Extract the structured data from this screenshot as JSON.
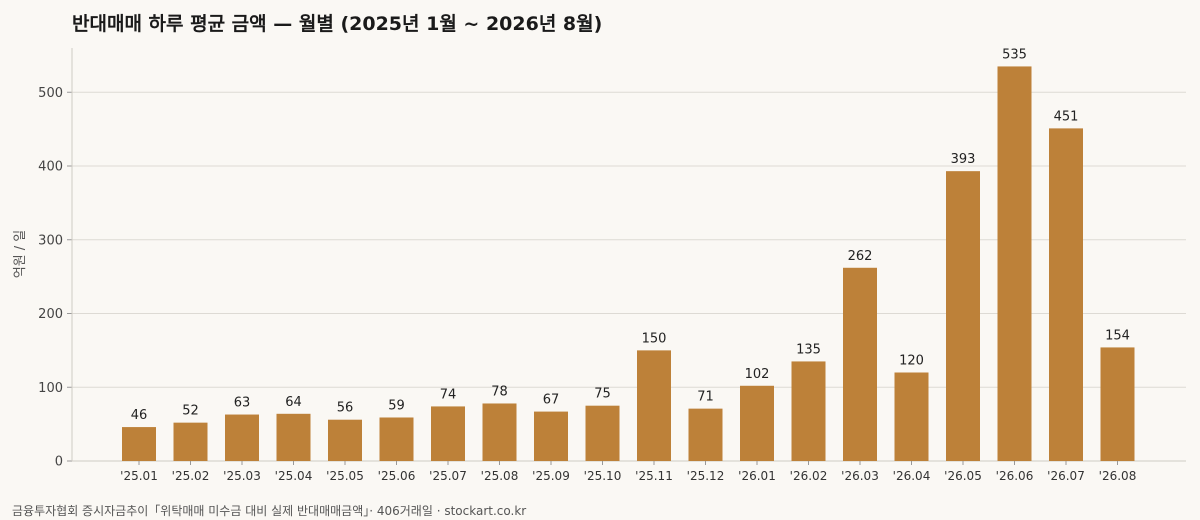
{
  "chart_data": {
    "type": "bar",
    "title": "반대매매 하루 평균 금액 — 월별 (2025년 1월 ~ 2026년 8월)",
    "xlabel": "",
    "ylabel": "억원 / 일",
    "categories": [
      "'25.01",
      "'25.02",
      "'25.03",
      "'25.04",
      "'25.05",
      "'25.06",
      "'25.07",
      "'25.08",
      "'25.09",
      "'25.10",
      "'25.11",
      "'25.12",
      "'26.01",
      "'26.02",
      "'26.03",
      "'26.04",
      "'26.05",
      "'26.06",
      "'26.07",
      "'26.08"
    ],
    "values": [
      46,
      52,
      63,
      64,
      56,
      59,
      74,
      78,
      67,
      75,
      150,
      71,
      102,
      135,
      262,
      120,
      393,
      535,
      451,
      154
    ],
    "ylim": [
      0,
      560
    ],
    "yticks": [
      0,
      100,
      200,
      300,
      400,
      500
    ],
    "grid": true,
    "bar_color": "#bd8139",
    "grid_color": "#dddad4"
  },
  "source_note": "금융투자협회 증시자금추이「위탁매매 미수금 대비 실제 반대매매금액」· 406거래일 · stockart.co.kr"
}
